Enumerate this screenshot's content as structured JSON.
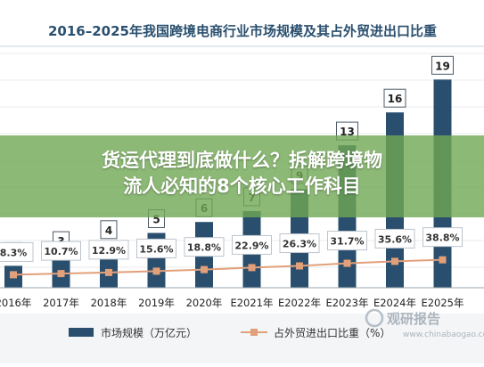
{
  "overlay": {
    "line1": "货运代理到底做什么？拆解跨境物",
    "line2": "流人必知的8个核心工作科目"
  },
  "watermark": {
    "brand": "观研报告",
    "url": "www.chinabaogao.com"
  },
  "colors": {
    "bar": "#2a4f6e",
    "line": "#e2a07a",
    "marker": "#e2a07a",
    "title": "#2a4f6e",
    "overlay": "#70a854"
  },
  "chart_data": {
    "type": "bar",
    "title": "2016–2025年我国跨境电商行业市场规模及其占外贸进出口比重",
    "categories": [
      "2016年",
      "2017年",
      "2018年",
      "2019年",
      "2020年",
      "E2021年",
      "E2022年",
      "E2023年",
      "E2024年",
      "E2025年"
    ],
    "series": [
      {
        "name": "市场规模（万亿元）",
        "type": "bar",
        "values": [
          2,
          3,
          4,
          5,
          6,
          7,
          9,
          13,
          16,
          19
        ],
        "labels": [
          "2",
          "3",
          "4",
          "5",
          "6",
          "7",
          "9",
          "13",
          "16",
          "19"
        ]
      },
      {
        "name": "占外贸进出口比重（%）",
        "type": "line",
        "values": [
          8.3,
          10.7,
          12.9,
          15.6,
          18.8,
          22.9,
          26.3,
          31.7,
          35.6,
          38.8
        ],
        "labels": [
          "8.3%",
          "10.7%",
          "12.9%",
          "15.6%",
          "18.8%",
          "22.9%",
          "26.3%",
          "31.7%",
          "35.6%",
          "38.8%"
        ]
      }
    ],
    "grid": true,
    "legend_position": "bottom"
  }
}
